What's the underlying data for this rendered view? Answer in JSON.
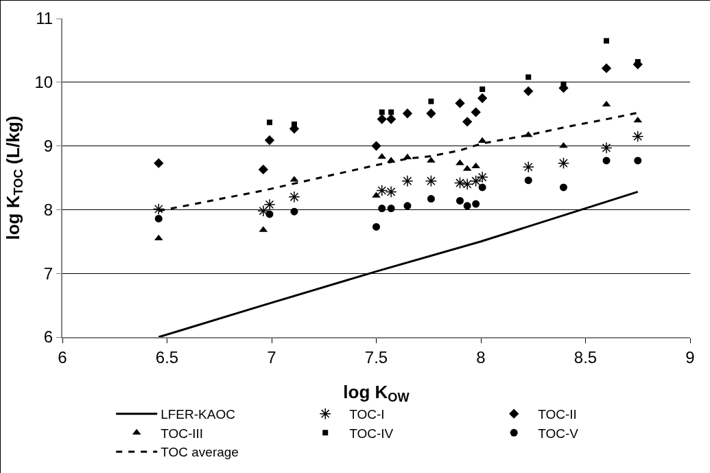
{
  "chart_data": {
    "type": "scatter",
    "xlabel": "log K$_{OW}$",
    "ylabel": "log K$_{TOC}$ (L/kg)",
    "xlim": [
      6,
      9
    ],
    "xticks": [
      6,
      6.5,
      7,
      7.5,
      8,
      8.5,
      9
    ],
    "ylim": [
      6,
      11
    ],
    "yticks": [
      6,
      7,
      8,
      9,
      10,
      11
    ],
    "grid": "y",
    "legend": "bottom",
    "series": [
      {
        "name": "LFER-KAOC",
        "type": "line",
        "color": "#000000",
        "marker": "none",
        "line_style": "solid",
        "x": [
          6.46,
          6.96,
          7.5,
          8.0,
          8.75
        ],
        "values": [
          6.0,
          6.5,
          7.03,
          7.5,
          8.28
        ]
      },
      {
        "name": "TOC-I",
        "color": "#000000",
        "marker": "cross",
        "x": [
          6.46,
          6.96,
          6.99,
          7.108,
          7.527,
          7.571,
          7.649,
          7.762,
          7.9,
          7.935,
          7.976,
          8.007,
          8.227,
          8.395,
          8.6,
          8.75
        ],
        "values": [
          8.01,
          7.98,
          8.08,
          8.2,
          8.3,
          8.28,
          8.45,
          8.45,
          8.42,
          8.4,
          8.45,
          8.51,
          8.67,
          8.73,
          8.97,
          9.15
        ]
      },
      {
        "name": "TOC-II",
        "color": "#000000",
        "marker": "diamond",
        "x": [
          6.46,
          6.96,
          6.99,
          7.108,
          7.5,
          7.527,
          7.571,
          7.649,
          7.762,
          7.9,
          7.935,
          7.976,
          8.007,
          8.227,
          8.395,
          8.6,
          8.75
        ],
        "values": [
          8.73,
          8.63,
          9.09,
          9.27,
          9.0,
          9.42,
          9.42,
          9.51,
          9.51,
          9.67,
          9.38,
          9.53,
          9.75,
          9.86,
          9.91,
          10.22,
          10.28
        ]
      },
      {
        "name": "TOC-III",
        "color": "#000000",
        "marker": "triangle",
        "x": [
          6.46,
          6.96,
          7.108,
          7.5,
          7.527,
          7.571,
          7.649,
          7.762,
          7.9,
          7.935,
          7.976,
          8.007,
          8.227,
          8.395,
          8.6,
          8.75
        ],
        "values": [
          7.55,
          7.68,
          8.47,
          8.22,
          8.83,
          8.77,
          8.82,
          8.77,
          8.73,
          8.64,
          8.68,
          9.08,
          9.17,
          9.0,
          9.65,
          9.4
        ]
      },
      {
        "name": "TOC-IV",
        "color": "#000000",
        "marker": "square",
        "x": [
          6.99,
          7.108,
          7.527,
          7.571,
          7.762,
          8.007,
          8.227,
          8.395,
          8.6,
          8.75
        ],
        "values": [
          9.37,
          9.34,
          9.53,
          9.53,
          9.7,
          9.89,
          10.08,
          9.97,
          10.65,
          10.32
        ]
      },
      {
        "name": "TOC-V",
        "color": "#000000",
        "marker": "circle",
        "x": [
          6.46,
          6.99,
          7.108,
          7.5,
          7.527,
          7.571,
          7.649,
          7.762,
          7.9,
          7.935,
          7.976,
          8.007,
          8.227,
          8.395,
          8.6,
          8.75
        ],
        "values": [
          7.86,
          7.93,
          7.97,
          7.73,
          8.02,
          8.02,
          8.06,
          8.17,
          8.14,
          8.06,
          8.09,
          8.35,
          8.46,
          8.35,
          8.77,
          8.77
        ]
      },
      {
        "name": "TOC average",
        "type": "line",
        "color": "#000000",
        "marker": "none",
        "line_style": "dashed",
        "x": [
          6.46,
          6.96,
          7.108,
          7.5,
          7.649,
          7.762,
          7.9,
          8.007,
          8.227,
          8.395,
          8.6,
          8.75
        ],
        "values": [
          7.98,
          8.3,
          8.41,
          8.7,
          8.8,
          8.84,
          8.93,
          9.04,
          9.17,
          9.29,
          9.42,
          9.52
        ]
      }
    ]
  }
}
